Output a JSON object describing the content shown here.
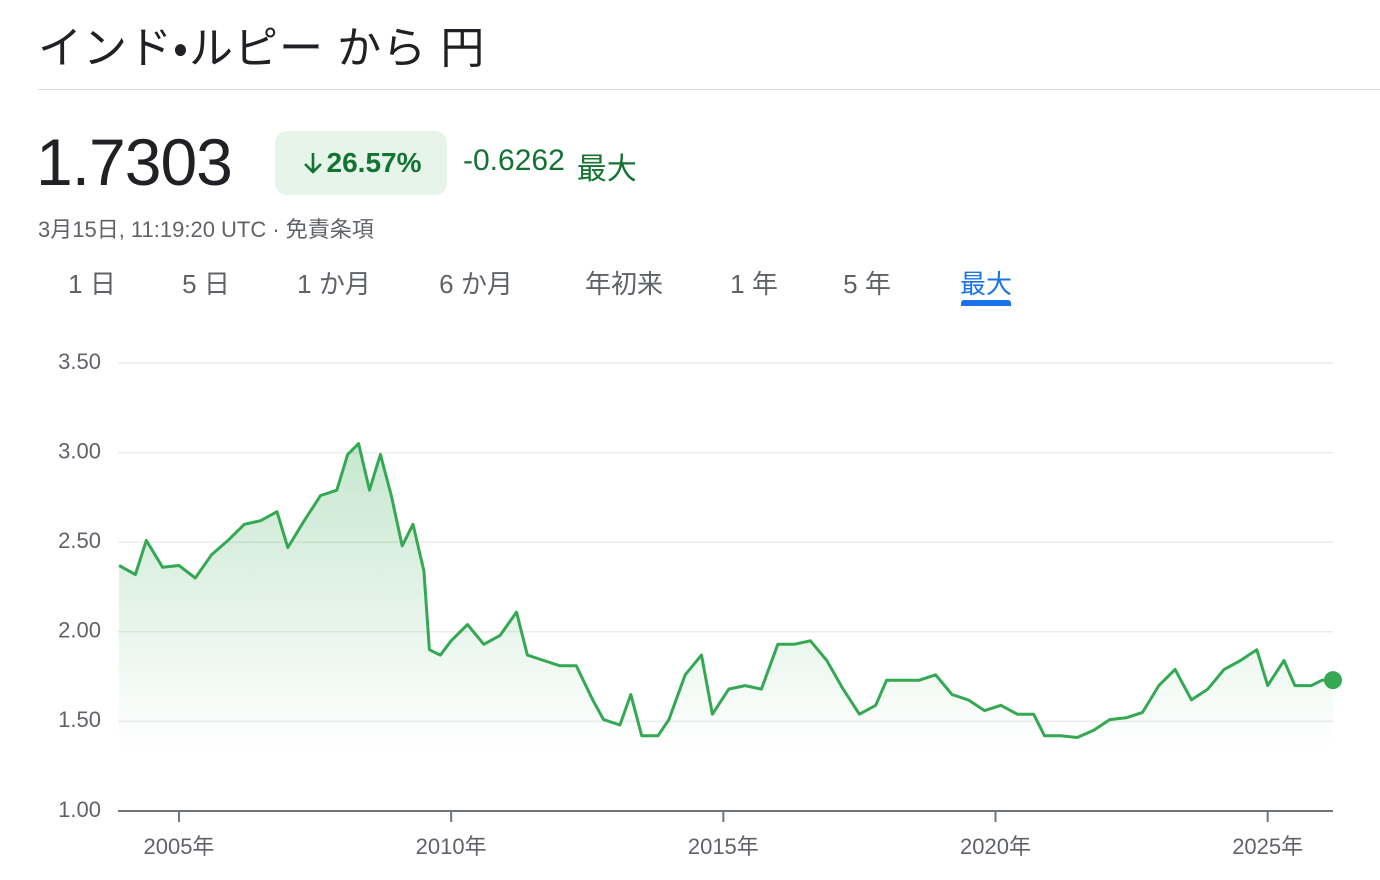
{
  "header": {
    "title": "インド・ルピー から 円"
  },
  "quote": {
    "price": "1.7303",
    "change_percent": "26.57%",
    "change_abs": "-0.6262",
    "period": "最大",
    "timestamp": "3月15日, 11:19:20 UTC · 免責条項"
  },
  "tabs": [
    "1 日",
    "5 日",
    "1 か月",
    "6 か月",
    "年初来",
    "1 年",
    "5 年",
    "最大"
  ],
  "chart_data": {
    "type": "line",
    "color": "#34a853",
    "grid": true,
    "x": [
      2003.9,
      2004.2,
      2004.4,
      2004.7,
      2005.0,
      2005.3,
      2005.6,
      2005.9,
      2006.2,
      2006.5,
      2006.8,
      2007.0,
      2007.3,
      2007.6,
      2007.9,
      2008.1,
      2008.3,
      2008.5,
      2008.7,
      2008.9,
      2009.1,
      2009.3,
      2009.5,
      2009.6,
      2009.8,
      2010.0,
      2010.3,
      2010.6,
      2010.9,
      2011.2,
      2011.4,
      2011.7,
      2012.0,
      2012.3,
      2012.6,
      2012.8,
      2013.1,
      2013.3,
      2013.5,
      2013.8,
      2014.0,
      2014.3,
      2014.6,
      2014.8,
      2015.1,
      2015.4,
      2015.7,
      2016.0,
      2016.3,
      2016.6,
      2016.9,
      2017.2,
      2017.5,
      2017.8,
      2018.0,
      2018.3,
      2018.6,
      2018.9,
      2019.2,
      2019.5,
      2019.8,
      2020.1,
      2020.4,
      2020.7,
      2020.9,
      2021.2,
      2021.5,
      2021.8,
      2022.1,
      2022.4,
      2022.7,
      2023.0,
      2023.3,
      2023.6,
      2023.9,
      2024.2,
      2024.5,
      2024.8,
      2025.0,
      2025.3,
      2025.5,
      2025.8,
      2026.0,
      2026.2
    ],
    "values": [
      2.37,
      2.32,
      2.51,
      2.36,
      2.37,
      2.3,
      2.43,
      2.51,
      2.6,
      2.62,
      2.67,
      2.47,
      2.62,
      2.76,
      2.79,
      2.99,
      3.05,
      2.79,
      2.99,
      2.76,
      2.48,
      2.6,
      2.34,
      1.9,
      1.87,
      1.95,
      2.04,
      1.93,
      1.98,
      2.11,
      1.87,
      1.84,
      1.81,
      1.81,
      1.62,
      1.51,
      1.48,
      1.65,
      1.42,
      1.42,
      1.51,
      1.76,
      1.87,
      1.54,
      1.68,
      1.7,
      1.68,
      1.93,
      1.93,
      1.95,
      1.84,
      1.68,
      1.54,
      1.59,
      1.73,
      1.73,
      1.73,
      1.76,
      1.65,
      1.62,
      1.56,
      1.59,
      1.54,
      1.54,
      1.42,
      1.42,
      1.41,
      1.45,
      1.51,
      1.52,
      1.55,
      1.7,
      1.79,
      1.62,
      1.68,
      1.79,
      1.84,
      1.9,
      1.7,
      1.84,
      1.7,
      1.7,
      1.73,
      1.7303
    ],
    "xlim": [
      2003.88,
      2026.2
    ],
    "ylim": [
      1.0,
      3.5
    ],
    "yticks": [
      {
        "value": 1.0,
        "label": "1.00"
      },
      {
        "value": 1.5,
        "label": "1.50"
      },
      {
        "value": 2.0,
        "label": "2.00"
      },
      {
        "value": 2.5,
        "label": "2.50"
      },
      {
        "value": 3.0,
        "label": "3.00"
      },
      {
        "value": 3.5,
        "label": "3.50"
      }
    ],
    "xticks": [
      {
        "value": 2005,
        "label": "2005年"
      },
      {
        "value": 2010,
        "label": "2010年"
      },
      {
        "value": 2015,
        "label": "2015年"
      },
      {
        "value": 2020,
        "label": "2020年"
      },
      {
        "value": 2025,
        "label": "2025年"
      }
    ]
  }
}
